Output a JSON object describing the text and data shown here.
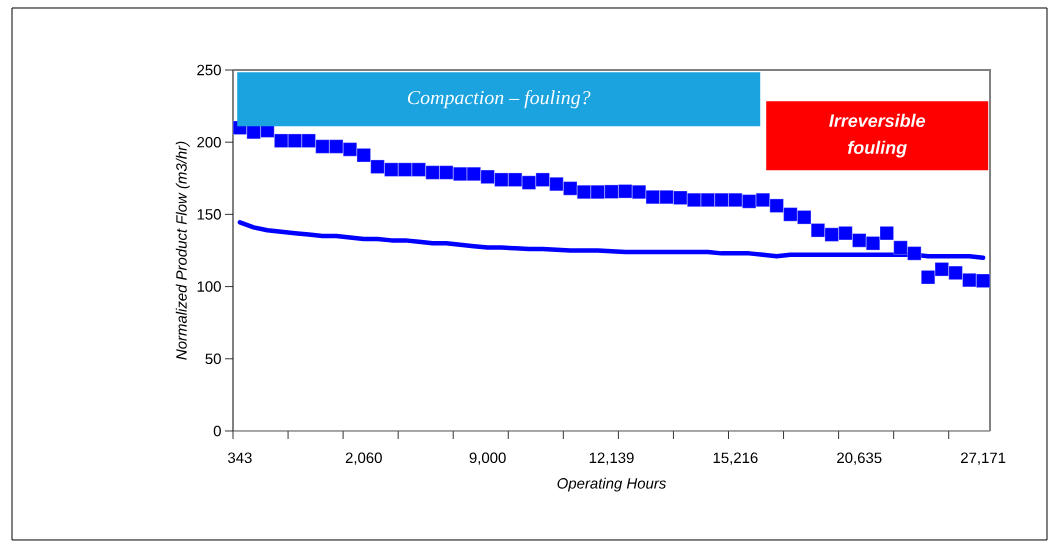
{
  "chart_data": {
    "type": "line",
    "xlabel": "Operating Hours",
    "ylabel": "Normalized Product Flow  (m3/hr)",
    "categories": [
      "343",
      null,
      null,
      null,
      null,
      null,
      null,
      null,
      null,
      "2,060",
      null,
      null,
      null,
      null,
      null,
      null,
      null,
      null,
      "9,000",
      null,
      null,
      null,
      null,
      null,
      null,
      null,
      null,
      "12,139",
      null,
      null,
      null,
      null,
      null,
      null,
      null,
      null,
      "15,216",
      null,
      null,
      null,
      null,
      null,
      null,
      null,
      null,
      "20,635",
      null,
      null,
      null,
      null,
      null,
      null,
      null,
      null,
      "27,171"
    ],
    "series": [
      {
        "type": "scatter",
        "marker": "square",
        "color": "#0000ff",
        "values": [
          210,
          207,
          208,
          201,
          201,
          201,
          197,
          197,
          195,
          191,
          183,
          181,
          181,
          181,
          179,
          179,
          178,
          178,
          176,
          174,
          174,
          172,
          174,
          171,
          168,
          165.5,
          165.5,
          165.7,
          166,
          165.5,
          162,
          162,
          161.5,
          160,
          160,
          160,
          160,
          159,
          160,
          156,
          150,
          148,
          139,
          136,
          137,
          132,
          130,
          137,
          127,
          123,
          106.5,
          112,
          109.5,
          104.5,
          104
        ]
      },
      {
        "marker": "none",
        "color": "#0000ff",
        "values": [
          144.5,
          141,
          139,
          138,
          137,
          136,
          135,
          135,
          134,
          133,
          133,
          132,
          132,
          131,
          130,
          130,
          129,
          128,
          127,
          127,
          126.5,
          126,
          126,
          125.5,
          125,
          125,
          125,
          124.5,
          124,
          124,
          124,
          124,
          124,
          124,
          124,
          123,
          123,
          123,
          122,
          121,
          122,
          122,
          122,
          122,
          122,
          122,
          122,
          122,
          122,
          122,
          121,
          121,
          121,
          121,
          120
        ]
      }
    ],
    "ylim": [
      0,
      250
    ],
    "yticks": [
      0,
      50,
      100,
      150,
      200,
      250
    ],
    "grid": false,
    "annotations": [
      "Compaction – fouling?",
      "Irreversible fouling"
    ]
  }
}
